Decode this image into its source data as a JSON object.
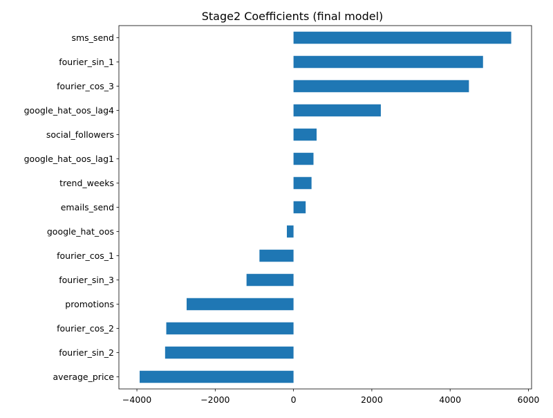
{
  "chart_data": {
    "type": "bar",
    "orientation": "horizontal",
    "title": "Stage2 Coefficients (final model)",
    "xlabel": "",
    "ylabel": "",
    "categories": [
      "sms_send",
      "fourier_sin_1",
      "fourier_cos_3",
      "google_hat_oos_lag4",
      "social_followers",
      "google_hat_oos_lag1",
      "trend_weeks",
      "emails_send",
      "google_hat_oos",
      "fourier_cos_1",
      "fourier_sin_3",
      "promotions",
      "fourier_cos_2",
      "fourier_sin_2",
      "average_price"
    ],
    "values": [
      5560,
      4840,
      4480,
      2230,
      590,
      510,
      460,
      310,
      -170,
      -870,
      -1200,
      -2730,
      -3250,
      -3280,
      -3930
    ],
    "xlim": [
      -4460,
      6080
    ],
    "xticks": [
      -4000,
      -2000,
      0,
      2000,
      4000,
      6000
    ],
    "xtick_labels": [
      "−4000",
      "−2000",
      "0",
      "2000",
      "4000",
      "6000"
    ],
    "grid": false,
    "legend": "none",
    "bar_color": "#1f77b4"
  }
}
